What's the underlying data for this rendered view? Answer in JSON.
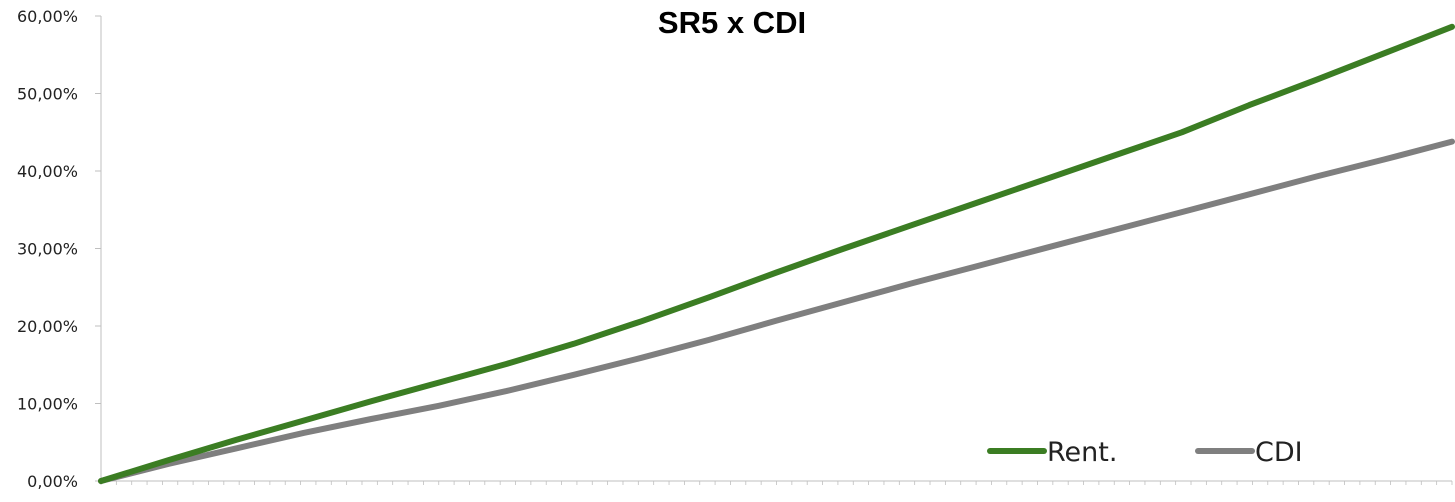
{
  "chart_data": {
    "type": "line",
    "title": "SR5 x CDI",
    "xlabel": "",
    "ylabel": "",
    "ylim": [
      0,
      60
    ],
    "y_ticks": [
      "0,00%",
      "10,00%",
      "20,00%",
      "30,00%",
      "40,00%",
      "50,00%",
      "60,00%"
    ],
    "grid": false,
    "legend_position": "bottom-right",
    "x": [
      0,
      5,
      10,
      15,
      20,
      25,
      30,
      35,
      40,
      45,
      50,
      55,
      60,
      65,
      70,
      75,
      80,
      85,
      90,
      95,
      100
    ],
    "series": [
      {
        "name": "Rent.",
        "color": "#3b7d23",
        "values": [
          0,
          2.7,
          5.3,
          7.8,
          10.3,
          12.7,
          15.1,
          17.7,
          20.6,
          23.7,
          26.9,
          30.0,
          33.0,
          36.0,
          39.0,
          42.0,
          45.0,
          48.5,
          51.8,
          55.2,
          58.6
        ]
      },
      {
        "name": "CDI",
        "color": "#7f7f7f",
        "values": [
          0,
          2.2,
          4.2,
          6.2,
          8.0,
          9.7,
          11.6,
          13.7,
          15.9,
          18.2,
          20.7,
          23.1,
          25.5,
          27.8,
          30.1,
          32.4,
          34.7,
          37.0,
          39.3,
          41.5,
          43.8
        ]
      }
    ]
  }
}
